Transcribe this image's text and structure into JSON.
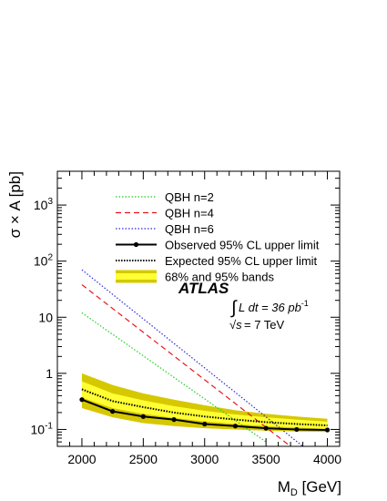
{
  "chart_data": {
    "type": "line",
    "xlabel_main": "M",
    "xlabel_sub": "D",
    "xlabel_unit": " [GeV]",
    "ylabel": "σ × A [pb]",
    "xlim": [
      1800,
      4100
    ],
    "ylim": [
      0.05,
      4000
    ],
    "yscale": "log",
    "x_ticks": [
      2000,
      2500,
      3000,
      3500,
      4000
    ],
    "y_ticks": [
      {
        "value": 0.1,
        "base": "10",
        "exp": "-1"
      },
      {
        "value": 1,
        "base": "1",
        "exp": ""
      },
      {
        "value": 10,
        "base": "10",
        "exp": ""
      },
      {
        "value": 100,
        "base": "10",
        "exp": "2"
      },
      {
        "value": 1000,
        "base": "10",
        "exp": "3"
      }
    ],
    "series": [
      {
        "name": "QBH n=2",
        "style": "dotted",
        "color": "#22cc22",
        "x": [
          2000,
          3500
        ],
        "y": [
          12,
          0.06
        ]
      },
      {
        "name": "QBH n=4",
        "style": "dashed",
        "color": "#e8141b",
        "x": [
          2000,
          3700
        ],
        "y": [
          38,
          0.05
        ]
      },
      {
        "name": "QBH n=6",
        "style": "dotted",
        "color": "#2a2ae0",
        "x": [
          2000,
          3800
        ],
        "y": [
          70,
          0.05
        ]
      },
      {
        "name": "Observed 95% CL upper limit",
        "style": "solid-markers",
        "color": "#000000",
        "x": [
          2000,
          2250,
          2500,
          2750,
          3000,
          3250,
          3500,
          3750,
          4000
        ],
        "y": [
          0.34,
          0.21,
          0.17,
          0.15,
          0.125,
          0.115,
          0.105,
          0.1,
          0.098
        ]
      },
      {
        "name": "Expected 95% CL upper limit",
        "style": "dotted-thick",
        "color": "#000000",
        "x": [
          2000,
          2250,
          2500,
          2750,
          3000,
          3250,
          3500,
          3750,
          4000
        ],
        "y": [
          0.52,
          0.32,
          0.25,
          0.2,
          0.17,
          0.15,
          0.135,
          0.125,
          0.118
        ]
      }
    ],
    "band_legend": "68% and 95% bands",
    "bands": {
      "x": [
        2000,
        2250,
        2500,
        2750,
        3000,
        3250,
        3500,
        3750,
        4000
      ],
      "outer_low": [
        0.24,
        0.165,
        0.13,
        0.115,
        0.105,
        0.1,
        0.095,
        0.092,
        0.09
      ],
      "outer_high": [
        1.0,
        0.62,
        0.44,
        0.34,
        0.27,
        0.22,
        0.19,
        0.17,
        0.155
      ],
      "inner_low": [
        0.37,
        0.24,
        0.19,
        0.16,
        0.14,
        0.125,
        0.115,
        0.108,
        0.102
      ],
      "inner_high": [
        0.72,
        0.44,
        0.33,
        0.26,
        0.215,
        0.185,
        0.165,
        0.15,
        0.138
      ],
      "outer_color": "#d6c800",
      "inner_color": "#ffff33"
    },
    "annotations": {
      "experiment": "ATLAS",
      "lumi_prefix": "∫",
      "lumi_text": " L dt = 36 pb",
      "lumi_exp": "-1",
      "energy_prefix": "√s",
      "energy_text": " = 7 TeV"
    }
  }
}
